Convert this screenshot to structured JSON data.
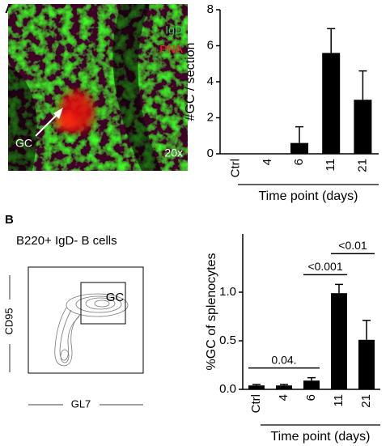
{
  "panel_a": {
    "label": "A",
    "image_labels": [
      "IgD",
      "PNA",
      "GC",
      "20x"
    ]
  },
  "panel_b": {
    "label": "B",
    "flow": {
      "title": "B220+ IgD- B cells",
      "gate": "GC",
      "y_label": "CD95",
      "x_label": "GL7"
    }
  },
  "chart_data": [
    {
      "type": "bar",
      "y_label": "#GC / section",
      "x_label": "Time point (days)",
      "color": "#000000",
      "categories": [
        "Ctrl",
        "4",
        "6",
        "11",
        "21"
      ],
      "values": [
        0,
        0,
        0.6,
        5.6,
        3.0
      ],
      "errors": [
        0,
        0,
        0.9,
        1.35,
        1.6
      ],
      "ylim": [
        0,
        8
      ],
      "yticks": [
        0,
        2,
        4,
        6,
        8
      ]
    },
    {
      "type": "bar",
      "y_label": "%GC of splenocytes",
      "x_label": "Time point (days)",
      "color": "#000000",
      "categories": [
        "Ctrl",
        "4",
        "6",
        "11",
        "21"
      ],
      "values": [
        0.04,
        0.04,
        0.09,
        0.99,
        0.51
      ],
      "errors": [
        0.01,
        0.01,
        0.03,
        0.09,
        0.2
      ],
      "ylim": [
        0,
        1.6
      ],
      "yticks": [
        {
          "value": 0,
          "label": "0.0"
        },
        {
          "value": 0.5,
          "label": "0.5"
        },
        {
          "value": 1,
          "label": "1.0"
        }
      ],
      "annotations": [
        {
          "text": "0.04.",
          "from": "Ctrl",
          "to": "6"
        },
        {
          "text": "<0.001",
          "from": "6",
          "to": "11"
        },
        {
          "text": "<0.01",
          "from": "11",
          "to": "21"
        }
      ]
    }
  ]
}
